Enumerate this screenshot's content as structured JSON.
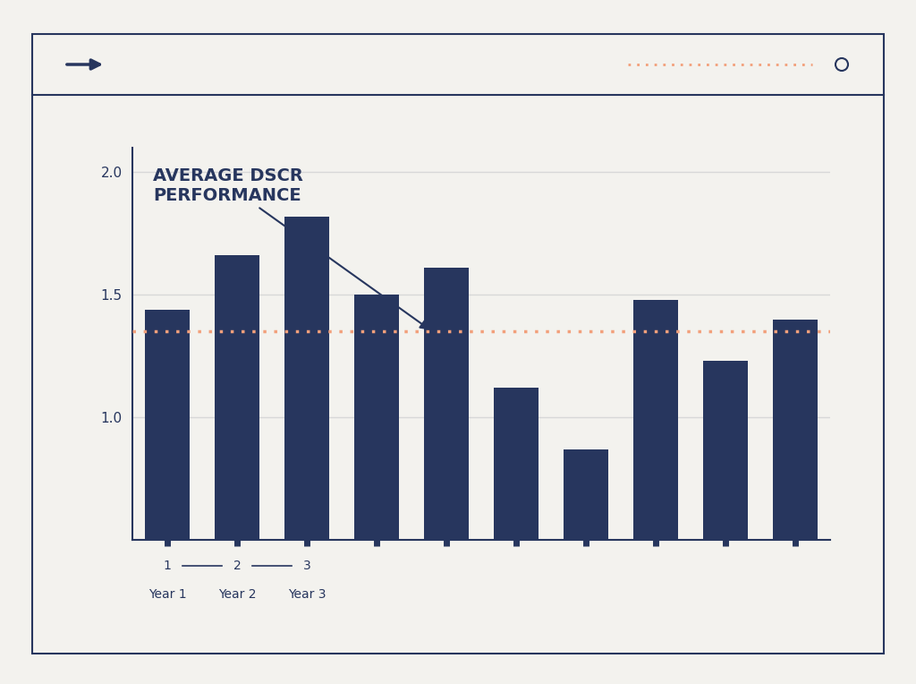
{
  "chart_data": {
    "type": "bar",
    "annotation": "AVERAGE DSCR\nPERFORMANCE",
    "categories": [
      "Year 1",
      "Year 2",
      "Year 3",
      null,
      null,
      null,
      null,
      null,
      null,
      null
    ],
    "step_labels": [
      "1",
      "2",
      "3"
    ],
    "values": [
      1.44,
      1.66,
      1.82,
      1.5,
      1.61,
      1.12,
      0.87,
      1.48,
      1.23,
      1.4
    ],
    "color": "#27365e",
    "average_line": {
      "value": 1.35,
      "color": "#f2a07b",
      "line_style": "dotted"
    },
    "ylim": [
      0.5,
      2.1
    ],
    "yticks": [
      {
        "value": 1,
        "label": "1.0"
      },
      {
        "value": 1.5,
        "label": "1.5"
      },
      {
        "value": 2,
        "label": "2.0"
      }
    ],
    "grid": true
  }
}
